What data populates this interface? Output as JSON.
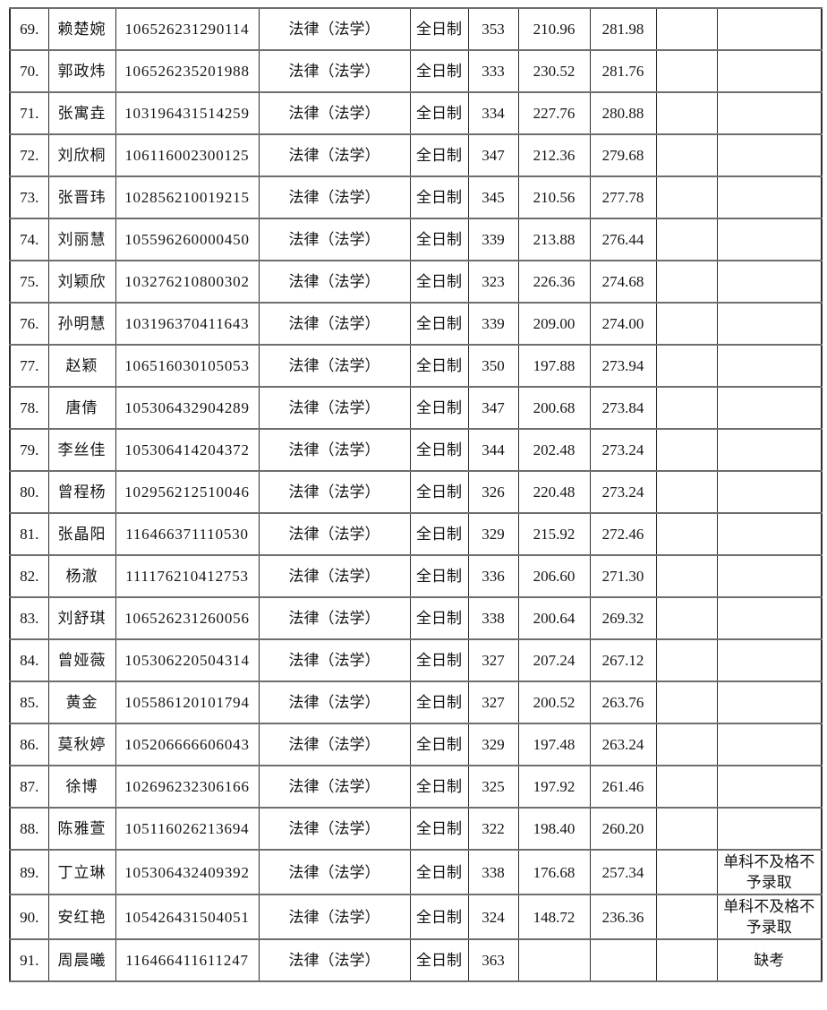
{
  "table": {
    "rows": [
      {
        "no": "69.",
        "name": "赖楚婉",
        "id": "106526231290114",
        "program": "法律（法学）",
        "mode": "全日制",
        "score1": "353",
        "score2": "210.96",
        "score3": "281.98",
        "blank": "",
        "remark": ""
      },
      {
        "no": "70.",
        "name": "郭政炜",
        "id": "106526235201988",
        "program": "法律（法学）",
        "mode": "全日制",
        "score1": "333",
        "score2": "230.52",
        "score3": "281.76",
        "blank": "",
        "remark": ""
      },
      {
        "no": "71.",
        "name": "张寓垚",
        "id": "103196431514259",
        "program": "法律（法学）",
        "mode": "全日制",
        "score1": "334",
        "score2": "227.76",
        "score3": "280.88",
        "blank": "",
        "remark": ""
      },
      {
        "no": "72.",
        "name": "刘欣桐",
        "id": "106116002300125",
        "program": "法律（法学）",
        "mode": "全日制",
        "score1": "347",
        "score2": "212.36",
        "score3": "279.68",
        "blank": "",
        "remark": ""
      },
      {
        "no": "73.",
        "name": "张晋玮",
        "id": "102856210019215",
        "program": "法律（法学）",
        "mode": "全日制",
        "score1": "345",
        "score2": "210.56",
        "score3": "277.78",
        "blank": "",
        "remark": ""
      },
      {
        "no": "74.",
        "name": "刘丽慧",
        "id": "105596260000450",
        "program": "法律（法学）",
        "mode": "全日制",
        "score1": "339",
        "score2": "213.88",
        "score3": "276.44",
        "blank": "",
        "remark": ""
      },
      {
        "no": "75.",
        "name": "刘颖欣",
        "id": "103276210800302",
        "program": "法律（法学）",
        "mode": "全日制",
        "score1": "323",
        "score2": "226.36",
        "score3": "274.68",
        "blank": "",
        "remark": ""
      },
      {
        "no": "76.",
        "name": "孙明慧",
        "id": "103196370411643",
        "program": "法律（法学）",
        "mode": "全日制",
        "score1": "339",
        "score2": "209.00",
        "score3": "274.00",
        "blank": "",
        "remark": ""
      },
      {
        "no": "77.",
        "name": "赵颖",
        "id": "106516030105053",
        "program": "法律（法学）",
        "mode": "全日制",
        "score1": "350",
        "score2": "197.88",
        "score3": "273.94",
        "blank": "",
        "remark": ""
      },
      {
        "no": "78.",
        "name": "唐倩",
        "id": "105306432904289",
        "program": "法律（法学）",
        "mode": "全日制",
        "score1": "347",
        "score2": "200.68",
        "score3": "273.84",
        "blank": "",
        "remark": ""
      },
      {
        "no": "79.",
        "name": "李丝佳",
        "id": "105306414204372",
        "program": "法律（法学）",
        "mode": "全日制",
        "score1": "344",
        "score2": "202.48",
        "score3": "273.24",
        "blank": "",
        "remark": ""
      },
      {
        "no": "80.",
        "name": "曾程杨",
        "id": "102956212510046",
        "program": "法律（法学）",
        "mode": "全日制",
        "score1": "326",
        "score2": "220.48",
        "score3": "273.24",
        "blank": "",
        "remark": ""
      },
      {
        "no": "81.",
        "name": "张晶阳",
        "id": "116466371110530",
        "program": "法律（法学）",
        "mode": "全日制",
        "score1": "329",
        "score2": "215.92",
        "score3": "272.46",
        "blank": "",
        "remark": ""
      },
      {
        "no": "82.",
        "name": "杨澈",
        "id": "111176210412753",
        "program": "法律（法学）",
        "mode": "全日制",
        "score1": "336",
        "score2": "206.60",
        "score3": "271.30",
        "blank": "",
        "remark": ""
      },
      {
        "no": "83.",
        "name": "刘舒琪",
        "id": "106526231260056",
        "program": "法律（法学）",
        "mode": "全日制",
        "score1": "338",
        "score2": "200.64",
        "score3": "269.32",
        "blank": "",
        "remark": ""
      },
      {
        "no": "84.",
        "name": "曾娅薇",
        "id": "105306220504314",
        "program": "法律（法学）",
        "mode": "全日制",
        "score1": "327",
        "score2": "207.24",
        "score3": "267.12",
        "blank": "",
        "remark": ""
      },
      {
        "no": "85.",
        "name": "黄金",
        "id": "105586120101794",
        "program": "法律（法学）",
        "mode": "全日制",
        "score1": "327",
        "score2": "200.52",
        "score3": "263.76",
        "blank": "",
        "remark": ""
      },
      {
        "no": "86.",
        "name": "莫秋婷",
        "id": "105206666606043",
        "program": "法律（法学）",
        "mode": "全日制",
        "score1": "329",
        "score2": "197.48",
        "score3": "263.24",
        "blank": "",
        "remark": ""
      },
      {
        "no": "87.",
        "name": "徐博",
        "id": "102696232306166",
        "program": "法律（法学）",
        "mode": "全日制",
        "score1": "325",
        "score2": "197.92",
        "score3": "261.46",
        "blank": "",
        "remark": ""
      },
      {
        "no": "88.",
        "name": "陈雅萱",
        "id": "105116026213694",
        "program": "法律（法学）",
        "mode": "全日制",
        "score1": "322",
        "score2": "198.40",
        "score3": "260.20",
        "blank": "",
        "remark": ""
      },
      {
        "no": "89.",
        "name": "丁立琳",
        "id": "105306432409392",
        "program": "法律（法学）",
        "mode": "全日制",
        "score1": "338",
        "score2": "176.68",
        "score3": "257.34",
        "blank": "",
        "remark": "单科不及格不予录取"
      },
      {
        "no": "90.",
        "name": "安红艳",
        "id": "105426431504051",
        "program": "法律（法学）",
        "mode": "全日制",
        "score1": "324",
        "score2": "148.72",
        "score3": "236.36",
        "blank": "",
        "remark": "单科不及格不予录取"
      },
      {
        "no": "91.",
        "name": "周晨曦",
        "id": "116466411611247",
        "program": "法律（法学）",
        "mode": "全日制",
        "score1": "363",
        "score2": "",
        "score3": "",
        "blank": "",
        "remark": "缺考"
      }
    ]
  }
}
